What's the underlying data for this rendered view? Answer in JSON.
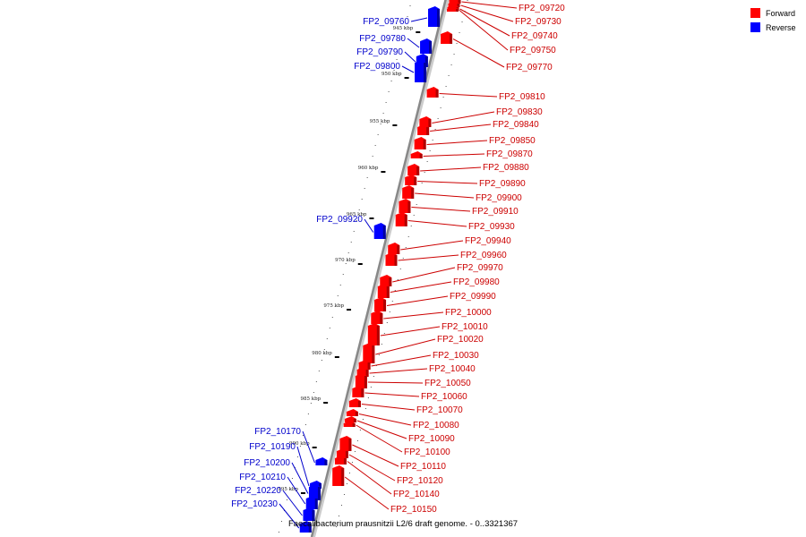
{
  "title": "Faecalibacterium prausnitzii L2/6 draft genome. - 0..3321367",
  "legend": [
    {
      "label": "Forward",
      "color": "#ff0000"
    },
    {
      "label": "Reverse",
      "color": "#0000ff"
    }
  ],
  "colors": {
    "forward": "#ff0000",
    "reverse": "#0000ff",
    "backbone": "#888888",
    "forward_dark": "#b00000",
    "reverse_dark": "#0000a0"
  },
  "kbp_ticks": [
    {
      "label": "945 kbp"
    },
    {
      "label": "950 kbp"
    },
    {
      "label": "955 kbp"
    },
    {
      "label": "960 kbp"
    },
    {
      "label": "965 kbp"
    },
    {
      "label": "970 kbp"
    },
    {
      "label": "975 kbp"
    },
    {
      "label": "980 kbp"
    },
    {
      "label": "985 kbp"
    },
    {
      "label": "990 kbp"
    },
    {
      "label": "995 kbp"
    }
  ],
  "forward_genes": [
    "FP2_09720",
    "FP2_09730",
    "FP2_09740",
    "FP2_09750",
    "FP2_09770",
    "FP2_09810",
    "FP2_09830",
    "FP2_09840",
    "FP2_09850",
    "FP2_09870",
    "FP2_09880",
    "FP2_09890",
    "FP2_09900",
    "FP2_09910",
    "FP2_09930",
    "FP2_09940",
    "FP2_09960",
    "FP2_09970",
    "FP2_09980",
    "FP2_09990",
    "FP2_10000",
    "FP2_10010",
    "FP2_10020",
    "FP2_10030",
    "FP2_10040",
    "FP2_10050",
    "FP2_10060",
    "FP2_10070",
    "FP2_10080",
    "FP2_10090",
    "FP2_10100",
    "FP2_10110",
    "FP2_10120",
    "FP2_10140",
    "FP2_10150"
  ],
  "reverse_genes": [
    "FP2_09760",
    "FP2_09780",
    "FP2_09790",
    "FP2_09800",
    "FP2_09920",
    "FP2_10170",
    "FP2_10190",
    "FP2_10200",
    "FP2_10210",
    "FP2_10220",
    "FP2_10230"
  ]
}
